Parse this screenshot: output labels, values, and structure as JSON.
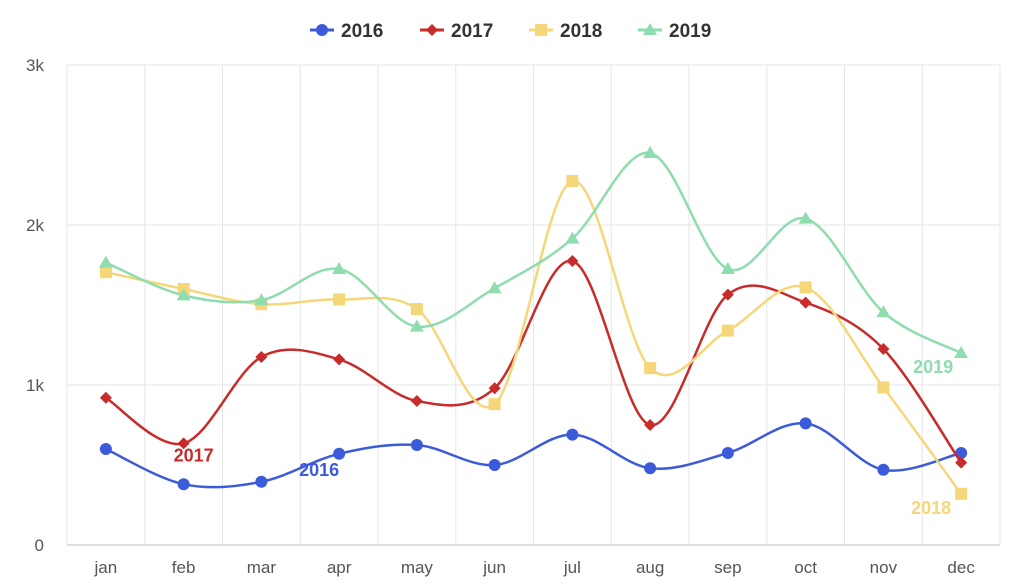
{
  "chart_data": {
    "type": "line",
    "categories": [
      "jan",
      "feb",
      "mar",
      "apr",
      "may",
      "jun",
      "jul",
      "aug",
      "sep",
      "oct",
      "nov",
      "dec"
    ],
    "y_ticks": [
      {
        "value": 0,
        "label": "0"
      },
      {
        "value": 1000,
        "label": "1k"
      },
      {
        "value": 2000,
        "label": "2k"
      },
      {
        "value": 3000,
        "label": "3k"
      }
    ],
    "ylim": [
      0,
      3000
    ],
    "grid": true,
    "legend_position": "top-center",
    "series": [
      {
        "name": "2016",
        "color": "#3b5bdb",
        "marker": "circle",
        "label": "2016",
        "values": [
          600,
          380,
          395,
          570,
          625,
          500,
          690,
          480,
          575,
          760,
          470,
          575
        ]
      },
      {
        "name": "2017",
        "color": "#c92a2a",
        "marker": "diamond",
        "label": "2017",
        "values": [
          920,
          635,
          1175,
          1160,
          900,
          980,
          1775,
          750,
          1565,
          1515,
          1225,
          515
        ]
      },
      {
        "name": "2018",
        "color": "#f5d77a",
        "marker": "square",
        "label": "2018",
        "values": [
          1705,
          1600,
          1505,
          1535,
          1475,
          880,
          2275,
          1105,
          1340,
          1610,
          985,
          320
        ]
      },
      {
        "name": "2019",
        "color": "#8fdcae",
        "marker": "triangle",
        "label": "2019",
        "values": [
          1765,
          1560,
          1530,
          1725,
          1365,
          1605,
          1915,
          2450,
          1725,
          2040,
          1455,
          1200
        ]
      }
    ]
  }
}
